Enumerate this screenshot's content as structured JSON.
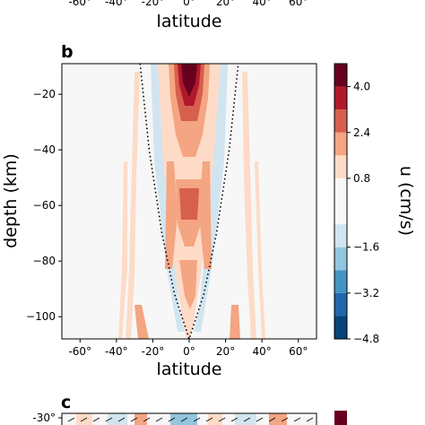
{
  "top_strip": {
    "tick_labels": [
      "-60°",
      "-40°",
      "-20°",
      "0°",
      "20°",
      "40°",
      "60°"
    ],
    "xlabel": "latitude"
  },
  "chart_data": [
    {
      "type": "contourf",
      "panel_label": "b",
      "title": "",
      "xlabel": "latitude",
      "ylabel": "depth (km)",
      "xlim": [
        -70,
        70
      ],
      "ylim": [
        -108,
        -9
      ],
      "x_ticks": [
        -60,
        -40,
        -20,
        0,
        20,
        40,
        60
      ],
      "x_tick_labels": [
        "-60°",
        "-40°",
        "-20°",
        "0°",
        "20°",
        "40°",
        "60°"
      ],
      "y_ticks": [
        -20,
        -40,
        -60,
        -80,
        -100
      ],
      "y_tick_labels": [
        "−20",
        "−40",
        "−60",
        "−80",
        "−100"
      ],
      "grid": false,
      "field": {
        "description_of_structure": "eastward velocity u concentrated in a parabolic equatorial waveguide; strongest positive values near 0° at shallow depth, alternating bands decaying with depth and latitude",
        "core_max_cm_s": 4.8,
        "boundary_curve": {
          "style": "dotted",
          "color": "#000000",
          "points": [
            [
              -27,
              -9
            ],
            [
              -22,
              -40
            ],
            [
              -15,
              -70
            ],
            [
              -8,
              -92
            ],
            [
              0,
              -108
            ],
            [
              8,
              -92
            ],
            [
              15,
              -70
            ],
            [
              22,
              -40
            ],
            [
              27,
              -9
            ]
          ]
        }
      },
      "colorbar": {
        "label": "u (cm/s)",
        "range": [
          -4.8,
          4.8
        ],
        "levels": [
          -4.8,
          -4.0,
          -3.2,
          -2.4,
          -1.6,
          -0.8,
          0.8,
          1.6,
          2.4,
          3.2,
          4.0,
          4.8
        ],
        "tick_values": [
          4.0,
          2.4,
          0.8,
          -1.6,
          -3.2,
          -4.8
        ],
        "tick_labels": [
          "4.0",
          "2.4",
          "0.8",
          "−1.6",
          "−3.2",
          "−4.8"
        ],
        "colors": [
          "#08437a",
          "#2166ac",
          "#4393c3",
          "#92c5de",
          "#d1e5f0",
          "#f7f7f7",
          "#fddbc7",
          "#f4a582",
          "#d6604d",
          "#b2182b",
          "#67001f"
        ]
      }
    },
    {
      "type": "contourf",
      "panel_label": "c",
      "partially_visible": true,
      "y_tick_labels": [
        "-30°"
      ]
    }
  ]
}
